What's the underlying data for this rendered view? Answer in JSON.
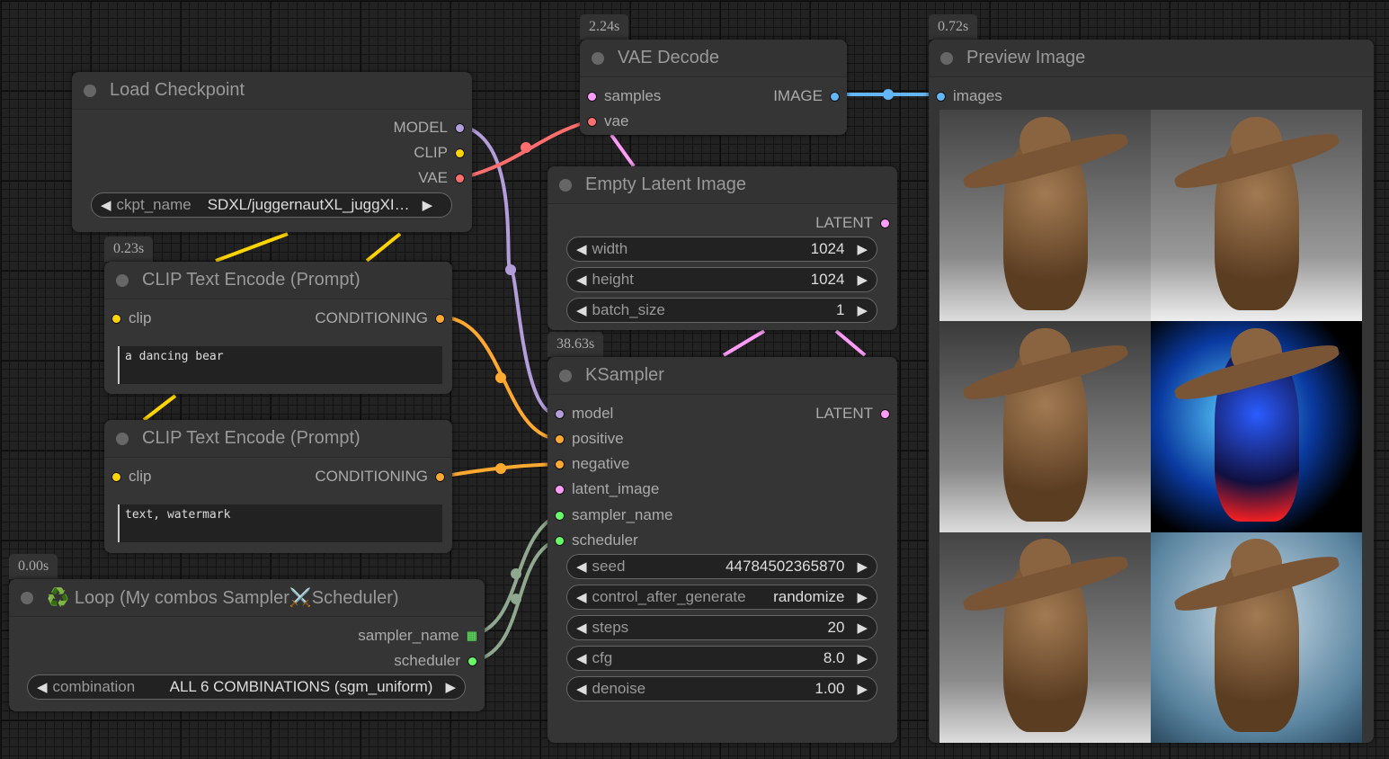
{
  "colors": {
    "model": "#b39ddb",
    "clip": "#ffd500",
    "vae": "#ff6e6e",
    "latent": "#ff9cf9",
    "conditioning": "#ffa931",
    "image": "#64b5f6",
    "combo": "#66ff66"
  },
  "badges": {
    "vae_decode": "2.24s",
    "preview": "0.72s",
    "clip1": "0.23s",
    "ksampler": "38.63s",
    "loop": "0.00s"
  },
  "load_checkpoint": {
    "title": "Load Checkpoint",
    "outputs": [
      "MODEL",
      "CLIP",
      "VAE"
    ],
    "widget": {
      "label": "ckpt_name",
      "value": "SDXL/juggernautXL_juggXI…"
    }
  },
  "vae_decode": {
    "title": "VAE Decode",
    "inputs": [
      "samples",
      "vae"
    ],
    "output": "IMAGE"
  },
  "preview_image": {
    "title": "Preview Image",
    "input": "images",
    "image_count": 6
  },
  "empty_latent": {
    "title": "Empty Latent Image",
    "output": "LATENT",
    "widgets": [
      {
        "label": "width",
        "value": "1024"
      },
      {
        "label": "height",
        "value": "1024"
      },
      {
        "label": "batch_size",
        "value": "1"
      }
    ]
  },
  "ksampler": {
    "title": "KSampler",
    "inputs": [
      "model",
      "positive",
      "negative",
      "latent_image",
      "sampler_name",
      "scheduler"
    ],
    "output": "LATENT",
    "widgets": [
      {
        "label": "seed",
        "value": "44784502365870"
      },
      {
        "label": "control_after_generate",
        "value": "randomize"
      },
      {
        "label": "steps",
        "value": "20"
      },
      {
        "label": "cfg",
        "value": "8.0"
      },
      {
        "label": "denoise",
        "value": "1.00"
      }
    ]
  },
  "clip1": {
    "title": "CLIP Text Encode (Prompt)",
    "input": "clip",
    "output": "CONDITIONING",
    "text": "a dancing bear"
  },
  "clip2": {
    "title": "CLIP Text Encode (Prompt)",
    "input": "clip",
    "output": "CONDITIONING",
    "text": "text, watermark"
  },
  "loop": {
    "icon": "♻️",
    "title": "Loop (My combos Sampler⚔️Scheduler)",
    "outputs": [
      "sampler_name",
      "scheduler"
    ],
    "widget": {
      "label": "combination",
      "value": "ALL 6 COMBINATIONS (sgm_uniform)"
    }
  }
}
